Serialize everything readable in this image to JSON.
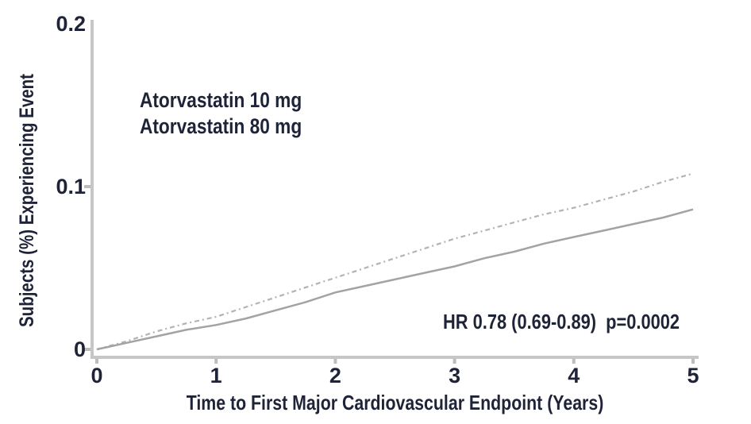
{
  "figure": {
    "colors": {
      "text": "#1e2338",
      "axis": "#c6c6c6",
      "tick": "#bdbdbd",
      "series_10mg": "#b3b3b3",
      "series_80mg": "#a3a3a3",
      "background": "#ffffff"
    },
    "annotation": "HR 0.78 (0.69-0.89)  p=0.0002"
  },
  "chart_data": {
    "type": "line",
    "title": "",
    "xlabel": "Time to First Major Cardiovascular Endpoint (Years)",
    "ylabel": "Subjects (%) Experiencing Event",
    "xlim": [
      0,
      5
    ],
    "ylim": [
      0,
      0.2
    ],
    "xticks": [
      0,
      1,
      2,
      3,
      4,
      5
    ],
    "yticks": [
      0,
      0.1,
      0.2
    ],
    "grid": false,
    "legend_position": "upper-left-inside",
    "annotation": "HR 0.78 (0.69-0.89)  p=0.0002",
    "x": [
      0,
      0.25,
      0.5,
      0.75,
      1,
      1.25,
      1.5,
      1.75,
      2,
      2.25,
      2.5,
      2.75,
      3,
      3.25,
      3.5,
      3.75,
      4,
      4.25,
      4.5,
      4.75,
      5
    ],
    "series": [
      {
        "name": "Atorvastatin 10 mg",
        "line_style": "dotted",
        "color": "#b3b3b3",
        "values": [
          0,
          0.005,
          0.011,
          0.016,
          0.02,
          0.026,
          0.032,
          0.038,
          0.044,
          0.05,
          0.056,
          0.062,
          0.068,
          0.073,
          0.078,
          0.083,
          0.087,
          0.092,
          0.097,
          0.103,
          0.108
        ]
      },
      {
        "name": "Atorvastatin 80 mg",
        "line_style": "solid",
        "color": "#a3a3a3",
        "values": [
          0,
          0.004,
          0.008,
          0.012,
          0.015,
          0.019,
          0.024,
          0.029,
          0.035,
          0.039,
          0.043,
          0.047,
          0.051,
          0.056,
          0.06,
          0.065,
          0.069,
          0.073,
          0.077,
          0.081,
          0.086
        ]
      }
    ]
  }
}
